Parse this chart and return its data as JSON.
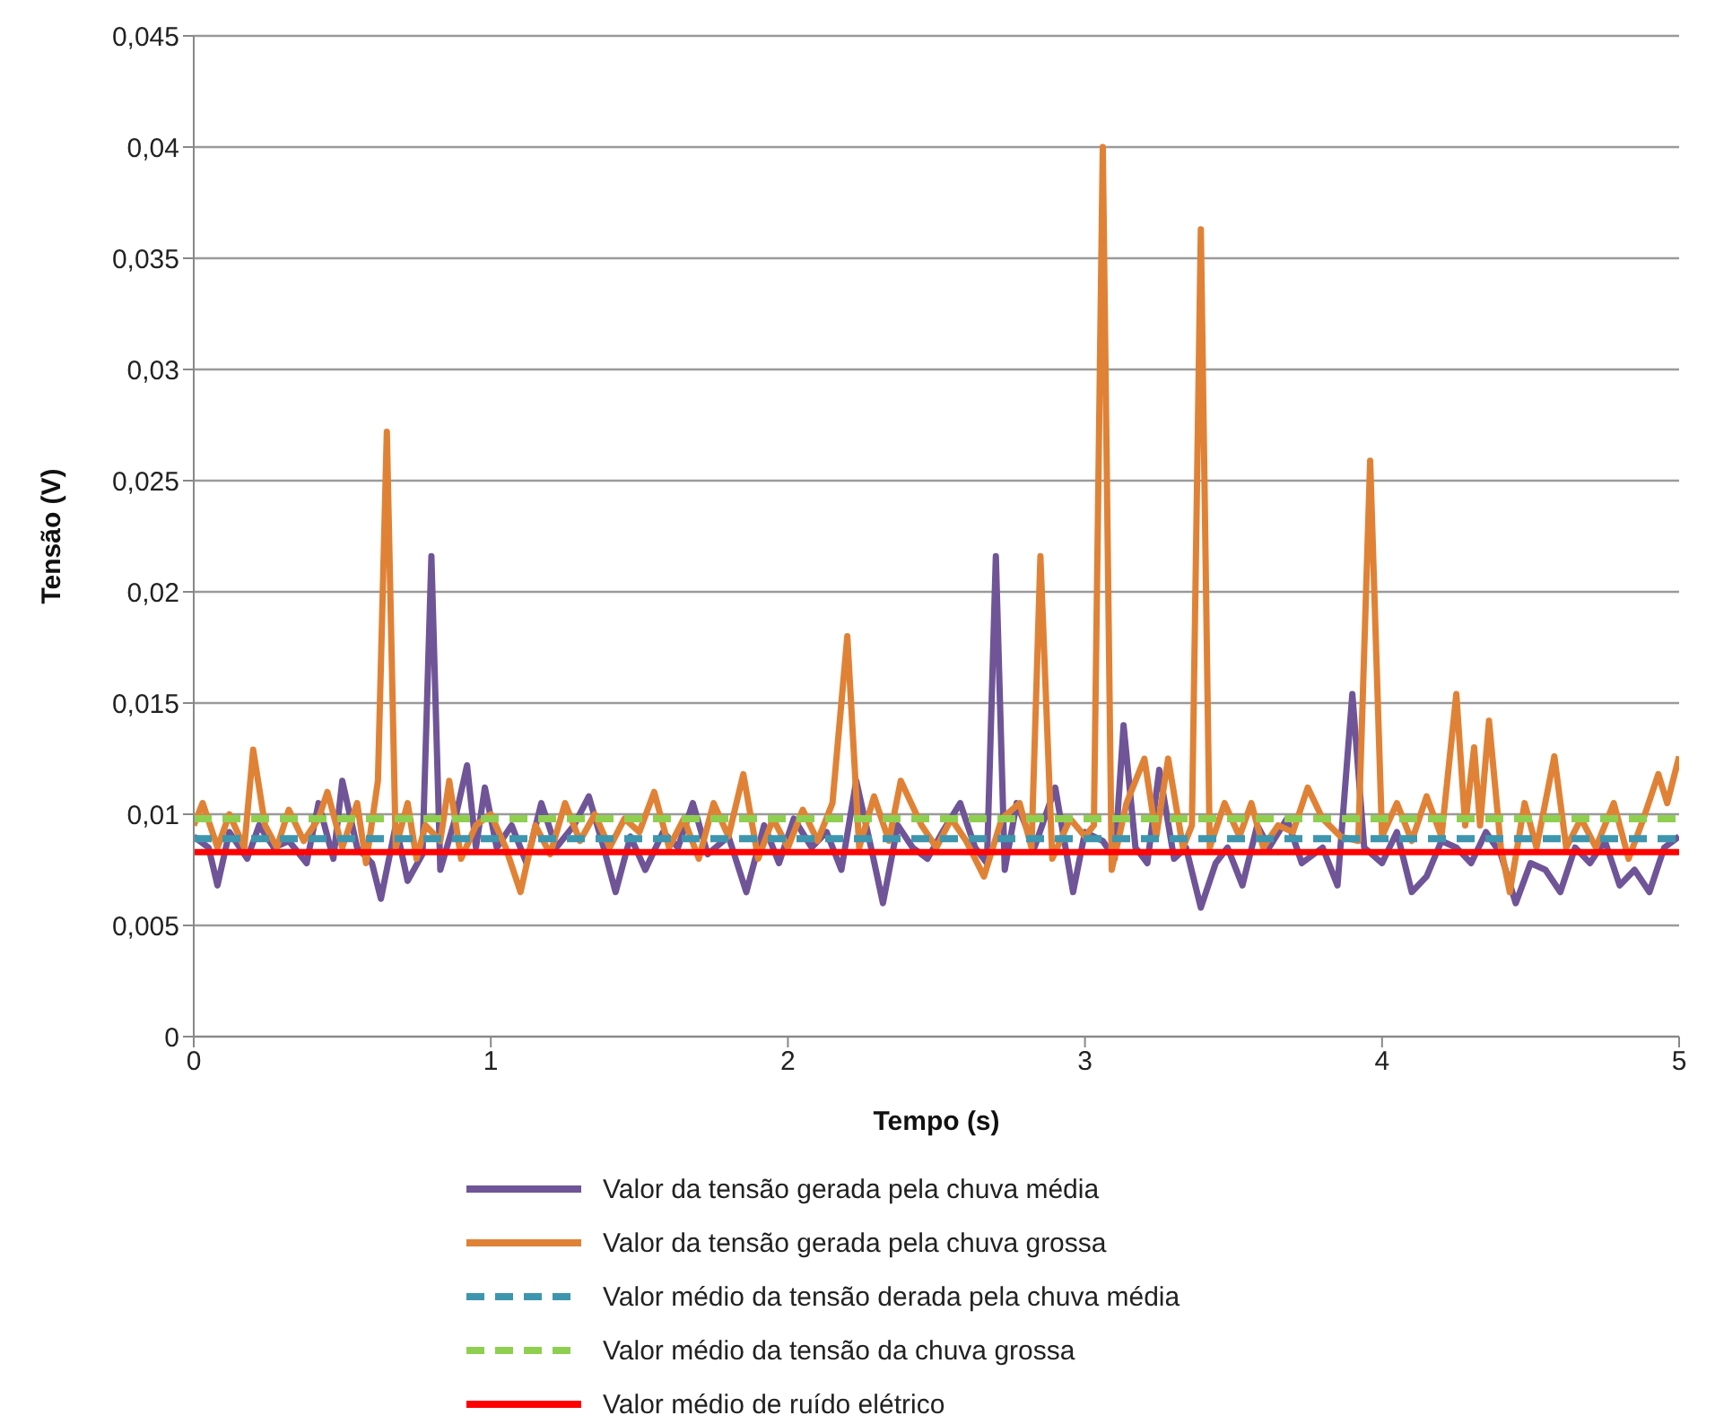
{
  "chart_data": {
    "type": "line",
    "xlabel": "Tempo (s)",
    "ylabel": "Tensão (V)",
    "xlim": [
      0,
      5
    ],
    "xticks": [
      0,
      1,
      2,
      3,
      4,
      5
    ],
    "ylim": [
      0,
      0.045
    ],
    "yticks": [
      0,
      {
        "value": 0.005,
        "label": "0,005"
      },
      {
        "value": 0.01,
        "label": "0,01"
      },
      {
        "value": 0.015,
        "label": "0,015"
      },
      {
        "value": 0.02,
        "label": "0,02"
      },
      {
        "value": 0.025,
        "label": "0,025"
      },
      {
        "value": 0.03,
        "label": "0,03"
      },
      {
        "value": 0.035,
        "label": "0,035"
      },
      {
        "value": 0.04,
        "label": "0,04"
      },
      {
        "value": 0.045,
        "label": "0,045"
      }
    ],
    "grid": "y",
    "legend": "bottom",
    "marker": "none",
    "series": [
      {
        "name": "Valor da tensão gerada pela chuva média",
        "color": "#6f5597",
        "line_style": "solid",
        "x": [
          0,
          0.05,
          0.08,
          0.12,
          0.18,
          0.22,
          0.27,
          0.32,
          0.38,
          0.42,
          0.47,
          0.5,
          0.55,
          0.6,
          0.63,
          0.68,
          0.72,
          0.77,
          0.8,
          0.83,
          0.88,
          0.92,
          0.95,
          0.98,
          1.02,
          1.07,
          1.12,
          1.17,
          1.22,
          1.28,
          1.33,
          1.38,
          1.42,
          1.47,
          1.52,
          1.58,
          1.63,
          1.68,
          1.73,
          1.8,
          1.86,
          1.92,
          1.97,
          2.02,
          2.08,
          2.13,
          2.18,
          2.23,
          2.28,
          2.32,
          2.37,
          2.42,
          2.47,
          2.52,
          2.58,
          2.63,
          2.67,
          2.7,
          2.73,
          2.77,
          2.83,
          2.9,
          2.96,
          3.0,
          3.06,
          3.1,
          3.13,
          3.17,
          3.21,
          3.25,
          3.3,
          3.34,
          3.39,
          3.44,
          3.48,
          3.53,
          3.58,
          3.62,
          3.68,
          3.73,
          3.8,
          3.85,
          3.9,
          3.94,
          4.0,
          4.05,
          4.1,
          4.15,
          4.2,
          4.25,
          4.3,
          4.35,
          4.4,
          4.45,
          4.5,
          4.55,
          4.6,
          4.65,
          4.7,
          4.75,
          4.8,
          4.85,
          4.9,
          4.95,
          5.0
        ],
        "values": [
          0.009,
          0.0085,
          0.0068,
          0.0092,
          0.008,
          0.0095,
          0.0085,
          0.0088,
          0.0078,
          0.0105,
          0.008,
          0.0115,
          0.0085,
          0.0078,
          0.0062,
          0.0095,
          0.007,
          0.0082,
          0.0216,
          0.0075,
          0.0098,
          0.0122,
          0.0085,
          0.0112,
          0.0085,
          0.0095,
          0.0078,
          0.0105,
          0.0085,
          0.0095,
          0.0108,
          0.0085,
          0.0065,
          0.009,
          0.0075,
          0.0092,
          0.0085,
          0.0105,
          0.0082,
          0.009,
          0.0065,
          0.0095,
          0.0078,
          0.0098,
          0.0085,
          0.0092,
          0.0075,
          0.0115,
          0.0085,
          0.006,
          0.0095,
          0.0085,
          0.008,
          0.0092,
          0.0105,
          0.0085,
          0.0078,
          0.0216,
          0.0075,
          0.0105,
          0.0085,
          0.0112,
          0.0065,
          0.0092,
          0.0088,
          0.008,
          0.014,
          0.0085,
          0.0078,
          0.012,
          0.008,
          0.0085,
          0.0058,
          0.0078,
          0.0085,
          0.0068,
          0.0095,
          0.0085,
          0.0098,
          0.0078,
          0.0085,
          0.0068,
          0.0154,
          0.0085,
          0.0078,
          0.0092,
          0.0065,
          0.0072,
          0.0088,
          0.0085,
          0.0078,
          0.0092,
          0.0082,
          0.006,
          0.0078,
          0.0075,
          0.0065,
          0.0085,
          0.0078,
          0.0088,
          0.0068,
          0.0075,
          0.0065,
          0.0085,
          0.009
        ]
      },
      {
        "name": "Valor da tensão gerada pela chuva grossa",
        "color": "#e08236",
        "line_style": "solid",
        "x": [
          0,
          0.03,
          0.08,
          0.12,
          0.17,
          0.2,
          0.24,
          0.28,
          0.32,
          0.37,
          0.42,
          0.45,
          0.5,
          0.55,
          0.58,
          0.62,
          0.65,
          0.68,
          0.72,
          0.75,
          0.78,
          0.83,
          0.86,
          0.9,
          0.95,
          1.0,
          1.05,
          1.1,
          1.15,
          1.2,
          1.25,
          1.3,
          1.35,
          1.4,
          1.45,
          1.5,
          1.55,
          1.6,
          1.65,
          1.7,
          1.75,
          1.8,
          1.85,
          1.9,
          1.95,
          2.0,
          2.05,
          2.1,
          2.15,
          2.2,
          2.24,
          2.29,
          2.34,
          2.38,
          2.45,
          2.5,
          2.55,
          2.6,
          2.66,
          2.72,
          2.78,
          2.82,
          2.85,
          2.89,
          2.95,
          3.0,
          3.03,
          3.06,
          3.09,
          3.14,
          3.2,
          3.24,
          3.28,
          3.33,
          3.36,
          3.39,
          3.42,
          3.47,
          3.52,
          3.56,
          3.6,
          3.65,
          3.7,
          3.75,
          3.8,
          3.86,
          3.92,
          3.96,
          4.0,
          4.05,
          4.1,
          4.15,
          4.2,
          4.25,
          4.28,
          4.31,
          4.33,
          4.36,
          4.4,
          4.43,
          4.48,
          4.52,
          4.58,
          4.62,
          4.67,
          4.72,
          4.78,
          4.83,
          4.88,
          4.93,
          4.96,
          5.0
        ],
        "values": [
          0.0095,
          0.0105,
          0.0085,
          0.01,
          0.0085,
          0.0129,
          0.0095,
          0.0085,
          0.0102,
          0.0088,
          0.0098,
          0.011,
          0.0085,
          0.0105,
          0.0078,
          0.0115,
          0.0272,
          0.0085,
          0.0105,
          0.008,
          0.0095,
          0.0088,
          0.0115,
          0.008,
          0.0095,
          0.01,
          0.0085,
          0.0065,
          0.0095,
          0.0082,
          0.0105,
          0.0088,
          0.01,
          0.0085,
          0.0098,
          0.0092,
          0.011,
          0.0085,
          0.0098,
          0.008,
          0.0105,
          0.009,
          0.0118,
          0.008,
          0.0098,
          0.0085,
          0.0102,
          0.0088,
          0.0105,
          0.018,
          0.0085,
          0.0108,
          0.0088,
          0.0115,
          0.0095,
          0.0085,
          0.0098,
          0.0088,
          0.0072,
          0.0098,
          0.0105,
          0.0085,
          0.0216,
          0.008,
          0.0098,
          0.009,
          0.0095,
          0.04,
          0.0075,
          0.0105,
          0.0125,
          0.009,
          0.0125,
          0.0085,
          0.0095,
          0.0363,
          0.0085,
          0.0105,
          0.009,
          0.0105,
          0.0085,
          0.0095,
          0.0092,
          0.0112,
          0.0098,
          0.009,
          0.0088,
          0.0259,
          0.009,
          0.0105,
          0.0088,
          0.0108,
          0.009,
          0.0154,
          0.0095,
          0.013,
          0.0095,
          0.0142,
          0.0085,
          0.0065,
          0.0105,
          0.0085,
          0.0126,
          0.0085,
          0.0098,
          0.0085,
          0.0105,
          0.008,
          0.0098,
          0.0118,
          0.0105,
          0.0126
        ]
      },
      {
        "name": "Valor médio da tensão derada pela chuva média",
        "color": "#3d96ae",
        "line_style": "dashed",
        "x": [
          0,
          5
        ],
        "values": [
          0.0089,
          0.0089
        ]
      },
      {
        "name": "Valor médio da tensão da chuva grossa",
        "color": "#8fcf4f",
        "line_style": "dashed",
        "x": [
          0,
          5
        ],
        "values": [
          0.0098,
          0.0098
        ]
      },
      {
        "name": "Valor médio de ruído elétrico",
        "color": "#ff0000",
        "line_style": "solid",
        "x": [
          0,
          5
        ],
        "values": [
          0.0083,
          0.0083
        ]
      }
    ]
  }
}
